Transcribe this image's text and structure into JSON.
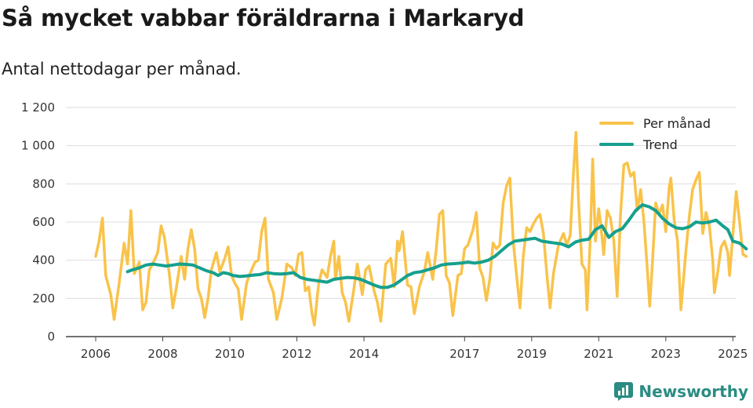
{
  "header": {
    "title": "Så mycket vabbar föräldrarna i Markaryd",
    "subtitle": "Antal nettodagar per månad."
  },
  "brand": {
    "name": "Newsworthy"
  },
  "colors": {
    "per_month": "#f9c34a",
    "trend": "#16a08e",
    "grid": "#dddddd",
    "axis": "#444444",
    "brand": "#2a8c82"
  },
  "chart_data": {
    "type": "line",
    "title": "Så mycket vabbar föräldrarna i Markaryd",
    "subtitle": "Antal nettodagar per månad.",
    "xlabel": "",
    "ylabel": "",
    "xlim": [
      2006,
      2025.6
    ],
    "ylim": [
      0,
      1200
    ],
    "x_ticks": [
      {
        "value": 2006,
        "label": "2006"
      },
      {
        "value": 2008,
        "label": "2008"
      },
      {
        "value": 2010,
        "label": "2010"
      },
      {
        "value": 2012,
        "label": "2012"
      },
      {
        "value": 2014,
        "label": "2014"
      },
      {
        "value": 2017,
        "label": "2017"
      },
      {
        "value": 2019,
        "label": "2019"
      },
      {
        "value": 2021,
        "label": "2021"
      },
      {
        "value": 2023,
        "label": "2023"
      },
      {
        "value": 2025,
        "label": "2025"
      }
    ],
    "y_ticks": [
      {
        "value": 0,
        "label": "0"
      },
      {
        "value": 200,
        "label": "200"
      },
      {
        "value": 400,
        "label": "400"
      },
      {
        "value": 600,
        "label": "600"
      },
      {
        "value": 800,
        "label": "800"
      },
      {
        "value": 1000,
        "label": "1 000"
      },
      {
        "value": 1200,
        "label": "1 200"
      }
    ],
    "grid": true,
    "legend_position": "top-right",
    "series": [
      {
        "name": "Per månad",
        "color": "#f9c34a",
        "points": [
          [
            2006.0,
            420
          ],
          [
            2006.1,
            500
          ],
          [
            2006.2,
            620
          ],
          [
            2006.3,
            320
          ],
          [
            2006.45,
            220
          ],
          [
            2006.55,
            90
          ],
          [
            2006.7,
            280
          ],
          [
            2006.85,
            490
          ],
          [
            2006.95,
            380
          ],
          [
            2007.05,
            660
          ],
          [
            2007.15,
            330
          ],
          [
            2007.3,
            390
          ],
          [
            2007.4,
            140
          ],
          [
            2007.5,
            180
          ],
          [
            2007.6,
            350
          ],
          [
            2007.7,
            380
          ],
          [
            2007.85,
            440
          ],
          [
            2007.95,
            580
          ],
          [
            2008.05,
            520
          ],
          [
            2008.2,
            320
          ],
          [
            2008.3,
            150
          ],
          [
            2008.4,
            250
          ],
          [
            2008.55,
            420
          ],
          [
            2008.65,
            300
          ],
          [
            2008.75,
            460
          ],
          [
            2008.85,
            560
          ],
          [
            2008.95,
            460
          ],
          [
            2009.05,
            250
          ],
          [
            2009.15,
            200
          ],
          [
            2009.25,
            100
          ],
          [
            2009.35,
            200
          ],
          [
            2009.45,
            350
          ],
          [
            2009.6,
            440
          ],
          [
            2009.7,
            340
          ],
          [
            2009.85,
            410
          ],
          [
            2009.95,
            470
          ],
          [
            2010.05,
            320
          ],
          [
            2010.15,
            280
          ],
          [
            2010.25,
            250
          ],
          [
            2010.35,
            90
          ],
          [
            2010.5,
            280
          ],
          [
            2010.6,
            330
          ],
          [
            2010.75,
            390
          ],
          [
            2010.85,
            400
          ],
          [
            2010.95,
            550
          ],
          [
            2011.05,
            620
          ],
          [
            2011.15,
            300
          ],
          [
            2011.3,
            230
          ],
          [
            2011.4,
            90
          ],
          [
            2011.55,
            200
          ],
          [
            2011.7,
            380
          ],
          [
            2011.85,
            360
          ],
          [
            2011.95,
            320
          ],
          [
            2012.05,
            430
          ],
          [
            2012.15,
            440
          ],
          [
            2012.25,
            240
          ],
          [
            2012.35,
            260
          ],
          [
            2012.45,
            120
          ],
          [
            2012.52,
            60
          ],
          [
            2012.65,
            280
          ],
          [
            2012.75,
            350
          ],
          [
            2012.9,
            310
          ],
          [
            2013.0,
            420
          ],
          [
            2013.1,
            500
          ],
          [
            2013.15,
            300
          ],
          [
            2013.25,
            420
          ],
          [
            2013.35,
            230
          ],
          [
            2013.45,
            180
          ],
          [
            2013.55,
            80
          ],
          [
            2013.7,
            250
          ],
          [
            2013.8,
            380
          ],
          [
            2013.95,
            220
          ],
          [
            2014.05,
            350
          ],
          [
            2014.15,
            370
          ],
          [
            2014.3,
            240
          ],
          [
            2014.4,
            180
          ],
          [
            2014.5,
            80
          ],
          [
            2014.65,
            380
          ],
          [
            2014.8,
            410
          ],
          [
            2014.9,
            260
          ],
          [
            2015.0,
            500
          ],
          [
            2015.05,
            450
          ],
          [
            2015.15,
            550
          ],
          [
            2015.3,
            270
          ],
          [
            2015.4,
            260
          ],
          [
            2015.5,
            120
          ],
          [
            2015.65,
            260
          ],
          [
            2015.8,
            340
          ],
          [
            2015.9,
            440
          ],
          [
            2016.05,
            300
          ],
          [
            2016.15,
            450
          ],
          [
            2016.25,
            640
          ],
          [
            2016.35,
            660
          ],
          [
            2016.45,
            320
          ],
          [
            2016.55,
            280
          ],
          [
            2016.65,
            110
          ],
          [
            2016.8,
            320
          ],
          [
            2016.9,
            330
          ],
          [
            2017.0,
            460
          ],
          [
            2017.1,
            480
          ],
          [
            2017.25,
            560
          ],
          [
            2017.35,
            650
          ],
          [
            2017.45,
            360
          ],
          [
            2017.55,
            310
          ],
          [
            2017.65,
            190
          ],
          [
            2017.75,
            300
          ],
          [
            2017.85,
            490
          ],
          [
            2017.95,
            460
          ],
          [
            2018.05,
            480
          ],
          [
            2018.15,
            700
          ],
          [
            2018.25,
            790
          ],
          [
            2018.35,
            830
          ],
          [
            2018.45,
            500
          ],
          [
            2018.55,
            320
          ],
          [
            2018.65,
            150
          ],
          [
            2018.75,
            420
          ],
          [
            2018.85,
            570
          ],
          [
            2018.95,
            550
          ],
          [
            2019.05,
            590
          ],
          [
            2019.15,
            620
          ],
          [
            2019.25,
            640
          ],
          [
            2019.35,
            540
          ],
          [
            2019.45,
            330
          ],
          [
            2019.55,
            150
          ],
          [
            2019.65,
            330
          ],
          [
            2019.8,
            480
          ],
          [
            2019.95,
            540
          ],
          [
            2020.05,
            480
          ],
          [
            2020.15,
            530
          ],
          [
            2020.25,
            870
          ],
          [
            2020.32,
            1070
          ],
          [
            2020.4,
            700
          ],
          [
            2020.5,
            380
          ],
          [
            2020.6,
            350
          ],
          [
            2020.65,
            140
          ],
          [
            2020.75,
            520
          ],
          [
            2020.82,
            930
          ],
          [
            2020.9,
            500
          ],
          [
            2021.0,
            670
          ],
          [
            2021.05,
            600
          ],
          [
            2021.15,
            430
          ],
          [
            2021.25,
            660
          ],
          [
            2021.35,
            620
          ],
          [
            2021.45,
            500
          ],
          [
            2021.55,
            210
          ],
          [
            2021.65,
            640
          ],
          [
            2021.75,
            900
          ],
          [
            2021.85,
            910
          ],
          [
            2021.95,
            840
          ],
          [
            2022.05,
            860
          ],
          [
            2022.15,
            660
          ],
          [
            2022.25,
            770
          ],
          [
            2022.35,
            600
          ],
          [
            2022.45,
            350
          ],
          [
            2022.52,
            160
          ],
          [
            2022.6,
            380
          ],
          [
            2022.7,
            700
          ],
          [
            2022.8,
            640
          ],
          [
            2022.9,
            690
          ],
          [
            2023.0,
            550
          ],
          [
            2023.1,
            780
          ],
          [
            2023.15,
            830
          ],
          [
            2023.25,
            610
          ],
          [
            2023.35,
            500
          ],
          [
            2023.45,
            140
          ],
          [
            2023.6,
            450
          ],
          [
            2023.7,
            630
          ],
          [
            2023.8,
            770
          ],
          [
            2023.9,
            820
          ],
          [
            2024.0,
            860
          ],
          [
            2024.1,
            540
          ],
          [
            2024.2,
            650
          ],
          [
            2024.3,
            580
          ],
          [
            2024.4,
            400
          ],
          [
            2024.45,
            230
          ],
          [
            2024.55,
            340
          ],
          [
            2024.65,
            470
          ],
          [
            2024.75,
            500
          ],
          [
            2024.85,
            440
          ],
          [
            2024.9,
            320
          ],
          [
            2025.0,
            530
          ],
          [
            2025.1,
            760
          ],
          [
            2025.2,
            600
          ],
          [
            2025.3,
            430
          ],
          [
            2025.4,
            420
          ]
        ]
      },
      {
        "name": "Trend",
        "color": "#16a08e",
        "points": [
          [
            2006.95,
            340
          ],
          [
            2007.1,
            350
          ],
          [
            2007.3,
            360
          ],
          [
            2007.5,
            375
          ],
          [
            2007.7,
            380
          ],
          [
            2007.9,
            375
          ],
          [
            2008.1,
            370
          ],
          [
            2008.3,
            375
          ],
          [
            2008.5,
            380
          ],
          [
            2008.7,
            378
          ],
          [
            2008.9,
            375
          ],
          [
            2009.1,
            360
          ],
          [
            2009.3,
            345
          ],
          [
            2009.5,
            335
          ],
          [
            2009.65,
            320
          ],
          [
            2009.8,
            335
          ],
          [
            2009.95,
            330
          ],
          [
            2010.1,
            320
          ],
          [
            2010.3,
            315
          ],
          [
            2010.5,
            318
          ],
          [
            2010.7,
            322
          ],
          [
            2010.9,
            325
          ],
          [
            2011.1,
            335
          ],
          [
            2011.3,
            330
          ],
          [
            2011.5,
            328
          ],
          [
            2011.7,
            330
          ],
          [
            2011.9,
            335
          ],
          [
            2012.1,
            310
          ],
          [
            2012.3,
            300
          ],
          [
            2012.5,
            295
          ],
          [
            2012.7,
            290
          ],
          [
            2012.9,
            285
          ],
          [
            2013.1,
            300
          ],
          [
            2013.3,
            305
          ],
          [
            2013.5,
            310
          ],
          [
            2013.7,
            308
          ],
          [
            2013.9,
            300
          ],
          [
            2014.1,
            285
          ],
          [
            2014.3,
            270
          ],
          [
            2014.5,
            258
          ],
          [
            2014.7,
            258
          ],
          [
            2014.9,
            270
          ],
          [
            2015.1,
            295
          ],
          [
            2015.3,
            320
          ],
          [
            2015.5,
            335
          ],
          [
            2015.7,
            340
          ],
          [
            2015.9,
            350
          ],
          [
            2016.1,
            360
          ],
          [
            2016.3,
            375
          ],
          [
            2016.5,
            380
          ],
          [
            2016.7,
            382
          ],
          [
            2016.9,
            385
          ],
          [
            2017.1,
            390
          ],
          [
            2017.3,
            385
          ],
          [
            2017.5,
            390
          ],
          [
            2017.7,
            400
          ],
          [
            2017.9,
            420
          ],
          [
            2018.1,
            450
          ],
          [
            2018.3,
            480
          ],
          [
            2018.5,
            500
          ],
          [
            2018.7,
            505
          ],
          [
            2018.9,
            510
          ],
          [
            2019.1,
            515
          ],
          [
            2019.3,
            500
          ],
          [
            2019.5,
            495
          ],
          [
            2019.7,
            490
          ],
          [
            2019.9,
            485
          ],
          [
            2020.1,
            470
          ],
          [
            2020.3,
            495
          ],
          [
            2020.5,
            505
          ],
          [
            2020.7,
            510
          ],
          [
            2020.9,
            560
          ],
          [
            2021.1,
            580
          ],
          [
            2021.3,
            520
          ],
          [
            2021.5,
            550
          ],
          [
            2021.7,
            565
          ],
          [
            2021.9,
            610
          ],
          [
            2022.1,
            660
          ],
          [
            2022.3,
            690
          ],
          [
            2022.5,
            680
          ],
          [
            2022.7,
            660
          ],
          [
            2022.9,
            620
          ],
          [
            2023.1,
            590
          ],
          [
            2023.3,
            570
          ],
          [
            2023.5,
            565
          ],
          [
            2023.7,
            575
          ],
          [
            2023.9,
            600
          ],
          [
            2024.1,
            595
          ],
          [
            2024.3,
            600
          ],
          [
            2024.5,
            610
          ],
          [
            2024.7,
            580
          ],
          [
            2024.85,
            560
          ],
          [
            2025.0,
            500
          ],
          [
            2025.2,
            490
          ],
          [
            2025.4,
            460
          ]
        ]
      }
    ]
  }
}
